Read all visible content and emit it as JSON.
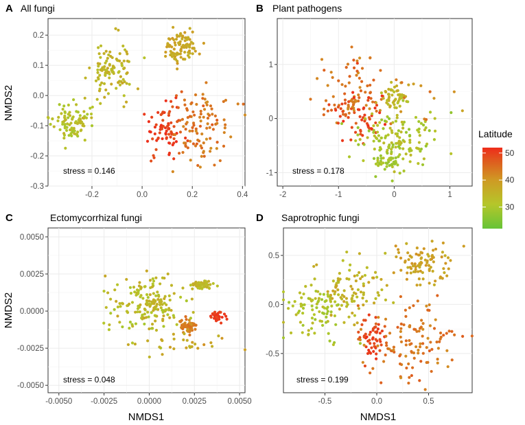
{
  "figure": {
    "xlabel": "NMDS1",
    "ylabel": "NMDS2",
    "legend": {
      "title": "Latitude",
      "min": 22,
      "max": 52,
      "ticks": [
        30,
        40,
        50
      ],
      "tick_labels": [
        "30",
        "40",
        "50"
      ],
      "colors": [
        "#66c437",
        "#b5c62a",
        "#cf9a24",
        "#e0571e",
        "#ee2c1a"
      ]
    }
  },
  "chart_data": [
    {
      "type": "scatter",
      "letter": "A",
      "title": "All fungi",
      "stress": "stress = 0.146",
      "xlim": [
        -0.375,
        0.41
      ],
      "ylim": [
        -0.3,
        0.255
      ],
      "xticks": [
        -0.2,
        0.0,
        0.2,
        0.4
      ],
      "xtick_labels": [
        "-0.2",
        "0.0",
        "0.2",
        "0.4"
      ],
      "yticks": [
        -0.3,
        -0.2,
        -0.1,
        0.0,
        0.1,
        0.2
      ],
      "ytick_labels": [
        "-0.3",
        "-0.2",
        "-0.1",
        "0.0",
        "0.1",
        "0.2"
      ],
      "clusters": [
        {
          "cx": -0.28,
          "cy": -0.085,
          "sx": 0.04,
          "sy": 0.03,
          "n": 95,
          "lat": [
            28,
            33
          ]
        },
        {
          "cx": -0.12,
          "cy": 0.09,
          "sx": 0.04,
          "sy": 0.045,
          "n": 105,
          "lat": [
            30,
            35
          ]
        },
        {
          "cx": 0.16,
          "cy": 0.16,
          "sx": 0.035,
          "sy": 0.03,
          "n": 90,
          "lat": [
            33,
            37
          ]
        },
        {
          "cx": 0.09,
          "cy": -0.12,
          "sx": 0.035,
          "sy": 0.055,
          "n": 70,
          "lat": [
            45,
            52
          ]
        },
        {
          "cx": 0.23,
          "cy": -0.09,
          "sx": 0.06,
          "sy": 0.06,
          "n": 110,
          "lat": [
            38,
            44
          ]
        }
      ]
    },
    {
      "type": "scatter",
      "letter": "B",
      "title": "Plant pathogens",
      "stress": "stress = 0.178",
      "xlim": [
        -2.1,
        1.4
      ],
      "ylim": [
        -1.25,
        1.85
      ],
      "xticks": [
        -2,
        -1,
        0,
        1
      ],
      "xtick_labels": [
        "-2",
        "-1",
        "0",
        "1"
      ],
      "yticks": [
        -1,
        0,
        1
      ],
      "ytick_labels": [
        "-1",
        "0",
        "1"
      ],
      "clusters": [
        {
          "cx": -0.7,
          "cy": 0.45,
          "sx": 0.3,
          "sy": 0.35,
          "n": 85,
          "lat": [
            38,
            44
          ]
        },
        {
          "cx": -0.6,
          "cy": 0.05,
          "sx": 0.25,
          "sy": 0.25,
          "n": 55,
          "lat": [
            45,
            52
          ]
        },
        {
          "cx": 0.0,
          "cy": 0.4,
          "sx": 0.1,
          "sy": 0.12,
          "n": 50,
          "lat": [
            30,
            35
          ]
        },
        {
          "cx": 0.0,
          "cy": -0.45,
          "sx": 0.35,
          "sy": 0.3,
          "n": 150,
          "lat": [
            26,
            32
          ]
        },
        {
          "cx": -0.15,
          "cy": -0.8,
          "sx": 0.12,
          "sy": 0.06,
          "n": 30,
          "lat": [
            26,
            30
          ]
        },
        {
          "cx": 0.6,
          "cy": 0.3,
          "sx": 0.3,
          "sy": 0.3,
          "n": 12,
          "lat": [
            35,
            42
          ]
        }
      ]
    },
    {
      "type": "scatter",
      "letter": "C",
      "title": "Ectomycorrhizal fungi",
      "stress": "stress = 0.048",
      "xlim": [
        -0.0056,
        0.0053
      ],
      "ylim": [
        -0.0055,
        0.0056
      ],
      "xticks": [
        -0.005,
        -0.0025,
        0.0,
        0.0025,
        0.005
      ],
      "xtick_labels": [
        "-0.0050",
        "-0.0025",
        "0.0000",
        "0.0025",
        "0.0050"
      ],
      "yticks": [
        -0.005,
        -0.0025,
        0.0,
        0.0025,
        0.005
      ],
      "ytick_labels": [
        "-0.0050",
        "-0.0025",
        "0.0000",
        "0.0025",
        "0.0050"
      ],
      "clusters": [
        {
          "cx": 0.0,
          "cy": 0.0005,
          "sx": 0.0011,
          "sy": 0.0011,
          "n": 150,
          "lat": [
            28,
            35
          ]
        },
        {
          "cx": 0.0029,
          "cy": 0.0018,
          "sx": 0.0003,
          "sy": 0.00015,
          "n": 50,
          "lat": [
            30,
            34
          ]
        },
        {
          "cx": 0.0021,
          "cy": -0.001,
          "sx": 0.00025,
          "sy": 0.0002,
          "n": 60,
          "lat": [
            37,
            42
          ]
        },
        {
          "cx": 0.0038,
          "cy": -0.0004,
          "sx": 0.00025,
          "sy": 0.0002,
          "n": 30,
          "lat": [
            46,
            52
          ]
        },
        {
          "cx": 0.0002,
          "cy": 0.0005,
          "sx": 0.0003,
          "sy": 0.0002,
          "n": 25,
          "lat": [
            30,
            34
          ]
        },
        {
          "cx": 0.0022,
          "cy": -0.0022,
          "sx": 0.0012,
          "sy": 0.0005,
          "n": 25,
          "lat": [
            32,
            38
          ]
        }
      ]
    },
    {
      "type": "scatter",
      "letter": "D",
      "title": "Saprotrophic fungi",
      "stress": "stress = 0.199",
      "xlim": [
        -0.9,
        0.92
      ],
      "ylim": [
        -0.9,
        0.78
      ],
      "xticks": [
        -0.5,
        0.0,
        0.5
      ],
      "xtick_labels": [
        "-0.5",
        "0.0",
        "0.5"
      ],
      "yticks": [
        -0.5,
        0.0,
        0.5
      ],
      "ytick_labels": [
        "-0.5",
        "0.0",
        "0.5"
      ],
      "clusters": [
        {
          "cx": -0.55,
          "cy": -0.05,
          "sx": 0.15,
          "sy": 0.15,
          "n": 100,
          "lat": [
            27,
            32
          ]
        },
        {
          "cx": -0.2,
          "cy": 0.15,
          "sx": 0.15,
          "sy": 0.15,
          "n": 80,
          "lat": [
            30,
            36
          ]
        },
        {
          "cx": 0.45,
          "cy": 0.4,
          "sx": 0.15,
          "sy": 0.13,
          "n": 90,
          "lat": [
            33,
            38
          ]
        },
        {
          "cx": -0.05,
          "cy": -0.35,
          "sx": 0.07,
          "sy": 0.12,
          "n": 50,
          "lat": [
            45,
            52
          ]
        },
        {
          "cx": 0.35,
          "cy": -0.38,
          "sx": 0.22,
          "sy": 0.18,
          "n": 120,
          "lat": [
            38,
            44
          ]
        }
      ]
    }
  ]
}
